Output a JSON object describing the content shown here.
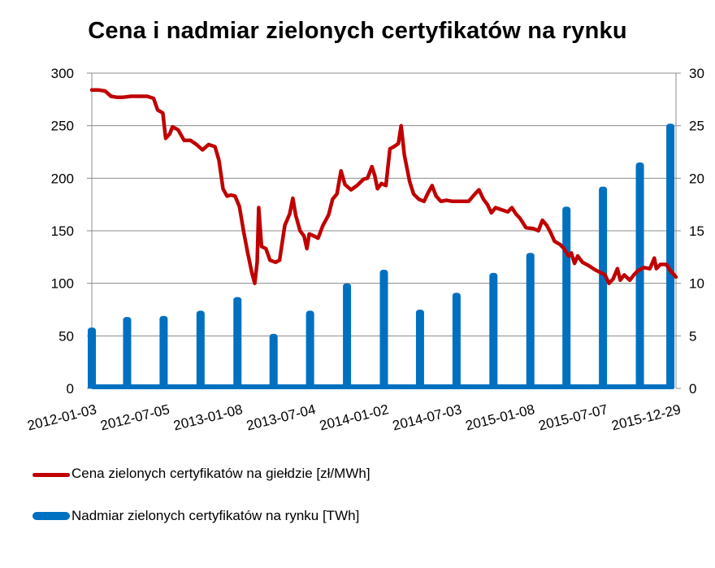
{
  "chart_data": {
    "type": "line+bar",
    "title": "Cena i nadmiar zielonych certyfikatów na rynku",
    "y_left": {
      "lim": [
        0,
        300
      ],
      "ticks": [
        0,
        50,
        100,
        150,
        200,
        250,
        300
      ]
    },
    "y_right": {
      "lim": [
        0,
        30
      ],
      "ticks": [
        0,
        5,
        10,
        15,
        20,
        25,
        30
      ]
    },
    "x": {
      "lim": [
        "2012-01-03",
        "2015-12-29"
      ],
      "tick_labels": [
        "2012-01-03",
        "2012-07-05",
        "2013-01-08",
        "2013-07-04",
        "2014-01-02",
        "2014-07-03",
        "2015-01-08",
        "2015-07-07",
        "2015-12-29"
      ]
    },
    "grid": "horizontal",
    "legend_position": "bottom-left",
    "series": [
      {
        "name": "Cena zielonych certyfikatów na giełdzie [zł/MWh]",
        "axis": "left",
        "type": "line",
        "color": "#c00000",
        "points": [
          [
            "2012-01-03",
            284
          ],
          [
            "2012-01-20",
            284
          ],
          [
            "2012-02-05",
            283
          ],
          [
            "2012-02-20",
            278
          ],
          [
            "2012-03-05",
            277
          ],
          [
            "2012-03-20",
            277
          ],
          [
            "2012-04-10",
            278
          ],
          [
            "2012-05-01",
            278
          ],
          [
            "2012-05-20",
            278
          ],
          [
            "2012-06-05",
            276
          ],
          [
            "2012-06-15",
            265
          ],
          [
            "2012-06-28",
            262
          ],
          [
            "2012-07-05",
            238
          ],
          [
            "2012-07-15",
            242
          ],
          [
            "2012-07-22",
            249
          ],
          [
            "2012-08-05",
            246
          ],
          [
            "2012-08-20",
            236
          ],
          [
            "2012-09-05",
            236
          ],
          [
            "2012-09-20",
            232
          ],
          [
            "2012-10-05",
            227
          ],
          [
            "2012-10-20",
            232
          ],
          [
            "2012-11-05",
            230
          ],
          [
            "2012-11-15",
            217
          ],
          [
            "2012-11-25",
            190
          ],
          [
            "2012-12-05",
            183
          ],
          [
            "2012-12-15",
            184
          ],
          [
            "2012-12-25",
            183
          ],
          [
            "2013-01-05",
            173
          ],
          [
            "2013-01-15",
            150
          ],
          [
            "2013-01-25",
            130
          ],
          [
            "2013-02-05",
            110
          ],
          [
            "2013-02-12",
            100
          ],
          [
            "2013-02-18",
            120
          ],
          [
            "2013-02-22",
            172
          ],
          [
            "2013-03-01",
            135
          ],
          [
            "2013-03-12",
            133
          ],
          [
            "2013-03-22",
            122
          ],
          [
            "2013-04-05",
            120
          ],
          [
            "2013-04-15",
            122
          ],
          [
            "2013-04-28",
            155
          ],
          [
            "2013-05-10",
            166
          ],
          [
            "2013-05-18",
            181
          ],
          [
            "2013-05-25",
            165
          ],
          [
            "2013-06-05",
            150
          ],
          [
            "2013-06-15",
            145
          ],
          [
            "2013-06-22",
            133
          ],
          [
            "2013-06-28",
            147
          ],
          [
            "2013-07-10",
            145
          ],
          [
            "2013-07-20",
            143
          ],
          [
            "2013-08-01",
            155
          ],
          [
            "2013-08-15",
            165
          ],
          [
            "2013-08-25",
            180
          ],
          [
            "2013-09-05",
            185
          ],
          [
            "2013-09-15",
            207
          ],
          [
            "2013-09-25",
            194
          ],
          [
            "2013-10-10",
            189
          ],
          [
            "2013-10-25",
            193
          ],
          [
            "2013-11-10",
            199
          ],
          [
            "2013-11-20",
            200
          ],
          [
            "2013-12-01",
            211
          ],
          [
            "2013-12-08",
            203
          ],
          [
            "2013-12-15",
            190
          ],
          [
            "2013-12-25",
            195
          ],
          [
            "2014-01-05",
            193
          ],
          [
            "2014-01-15",
            228
          ],
          [
            "2014-01-25",
            230
          ],
          [
            "2014-02-05",
            233
          ],
          [
            "2014-02-12",
            250
          ],
          [
            "2014-02-20",
            222
          ],
          [
            "2014-03-05",
            197
          ],
          [
            "2014-03-15",
            185
          ],
          [
            "2014-03-28",
            180
          ],
          [
            "2014-04-10",
            178
          ],
          [
            "2014-04-20",
            186
          ],
          [
            "2014-04-30",
            193
          ],
          [
            "2014-05-10",
            183
          ],
          [
            "2014-05-22",
            178
          ],
          [
            "2014-06-05",
            179
          ],
          [
            "2014-06-20",
            178
          ],
          [
            "2014-07-10",
            178
          ],
          [
            "2014-07-30",
            178
          ],
          [
            "2014-08-15",
            185
          ],
          [
            "2014-08-25",
            189
          ],
          [
            "2014-09-05",
            180
          ],
          [
            "2014-09-15",
            175
          ],
          [
            "2014-09-25",
            167
          ],
          [
            "2014-10-05",
            172
          ],
          [
            "2014-10-20",
            170
          ],
          [
            "2014-11-05",
            168
          ],
          [
            "2014-11-15",
            172
          ],
          [
            "2014-11-25",
            166
          ],
          [
            "2014-12-05",
            162
          ],
          [
            "2014-12-20",
            153
          ],
          [
            "2015-01-08",
            152
          ],
          [
            "2015-01-20",
            150
          ],
          [
            "2015-01-30",
            160
          ],
          [
            "2015-02-10",
            155
          ],
          [
            "2015-02-20",
            148
          ],
          [
            "2015-03-01",
            140
          ],
          [
            "2015-03-15",
            137
          ],
          [
            "2015-03-25",
            133
          ],
          [
            "2015-04-05",
            126
          ],
          [
            "2015-04-12",
            129
          ],
          [
            "2015-04-20",
            119
          ],
          [
            "2015-04-28",
            126
          ],
          [
            "2015-05-10",
            120
          ],
          [
            "2015-05-25",
            117
          ],
          [
            "2015-06-10",
            113
          ],
          [
            "2015-06-25",
            110
          ],
          [
            "2015-07-05",
            108
          ],
          [
            "2015-07-15",
            100
          ],
          [
            "2015-07-25",
            104
          ],
          [
            "2015-08-05",
            114
          ],
          [
            "2015-08-12",
            103
          ],
          [
            "2015-08-22",
            108
          ],
          [
            "2015-09-05",
            103
          ],
          [
            "2015-09-15",
            108
          ],
          [
            "2015-09-25",
            112
          ],
          [
            "2015-10-10",
            115
          ],
          [
            "2015-10-25",
            114
          ],
          [
            "2015-11-05",
            124
          ],
          [
            "2015-11-10",
            114
          ],
          [
            "2015-11-20",
            118
          ],
          [
            "2015-12-05",
            118
          ],
          [
            "2015-12-15",
            112
          ],
          [
            "2015-12-29",
            106
          ]
        ]
      },
      {
        "name": "Nadmiar zielonych certyfikatów na rynku [TWh]",
        "axis": "right",
        "type": "spike",
        "color": "#0070c0",
        "baseline": 0,
        "points": [
          [
            "2012-01-03",
            5.8
          ],
          [
            "2012-03-31",
            6.8
          ],
          [
            "2012-06-30",
            6.9
          ],
          [
            "2012-09-30",
            7.4
          ],
          [
            "2012-12-31",
            8.7
          ],
          [
            "2013-03-31",
            5.2
          ],
          [
            "2013-06-30",
            7.4
          ],
          [
            "2013-09-30",
            10.0
          ],
          [
            "2013-12-31",
            11.3
          ],
          [
            "2014-03-31",
            7.5
          ],
          [
            "2014-06-30",
            9.1
          ],
          [
            "2014-09-30",
            11.0
          ],
          [
            "2014-12-31",
            12.9
          ],
          [
            "2015-03-31",
            17.3
          ],
          [
            "2015-06-30",
            19.2
          ],
          [
            "2015-09-30",
            21.5
          ],
          [
            "2015-12-15",
            25.2
          ]
        ]
      }
    ]
  }
}
